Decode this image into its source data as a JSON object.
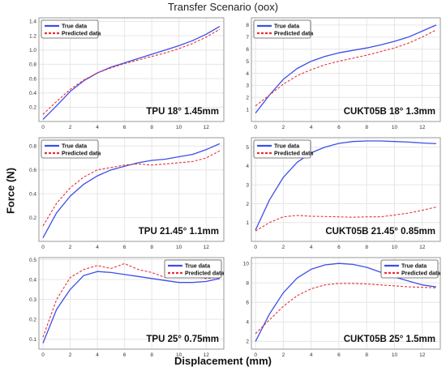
{
  "figure": {
    "title": "Transfer Scenario (oox)",
    "ylabel": "Force (N)",
    "xlabel": "Displacement (mm)"
  },
  "colors": {
    "true": "#3d4ee8",
    "pred": "#e8303a"
  },
  "chart_data": [
    {
      "type": "line",
      "title": "TPU 18° 1.45mm",
      "legend": "top-left",
      "xlim": [
        -0.3,
        13.3
      ],
      "ylim": [
        0,
        1.45
      ],
      "xticks": [
        0,
        2,
        4,
        6,
        8,
        10,
        12
      ],
      "yticks": [
        0.2,
        0.4,
        0.6,
        0.8,
        1.0,
        1.2,
        1.4
      ],
      "ytick_labels": [
        "0.2",
        "0.4",
        "0.6",
        "0.8",
        "1.0",
        "1.2",
        "1.4"
      ],
      "series": [
        {
          "name": "True data",
          "style": "solid",
          "x": [
            0,
            1,
            2,
            3,
            4,
            5,
            6,
            7,
            8,
            9,
            10,
            11,
            12,
            13
          ],
          "y": [
            0.03,
            0.22,
            0.42,
            0.57,
            0.68,
            0.76,
            0.82,
            0.88,
            0.94,
            1.0,
            1.06,
            1.13,
            1.22,
            1.33
          ]
        },
        {
          "name": "Predicted data",
          "style": "dashed",
          "x": [
            0,
            1,
            2,
            3,
            4,
            5,
            6,
            7,
            8,
            9,
            10,
            11,
            12,
            13
          ],
          "y": [
            0.1,
            0.28,
            0.45,
            0.58,
            0.68,
            0.75,
            0.81,
            0.86,
            0.91,
            0.96,
            1.02,
            1.09,
            1.18,
            1.29
          ]
        }
      ]
    },
    {
      "type": "line",
      "title": "CUKT05B 18° 1.3mm",
      "legend": "top-left",
      "xlim": [
        -0.3,
        13.3
      ],
      "ylim": [
        0,
        8.6
      ],
      "xticks": [
        0,
        2,
        4,
        6,
        8,
        10,
        12
      ],
      "yticks": [
        1,
        2,
        3,
        4,
        5,
        6,
        7,
        8
      ],
      "ytick_labels": [
        "1",
        "2",
        "3",
        "4",
        "5",
        "6",
        "7",
        "8"
      ],
      "series": [
        {
          "name": "True data",
          "style": "solid",
          "x": [
            0,
            1,
            2,
            3,
            4,
            5,
            6,
            7,
            8,
            9,
            10,
            11,
            12,
            13
          ],
          "y": [
            0.7,
            2.2,
            3.5,
            4.4,
            5.0,
            5.4,
            5.7,
            5.9,
            6.1,
            6.35,
            6.65,
            7.0,
            7.5,
            8.0
          ]
        },
        {
          "name": "Predicted data",
          "style": "dashed",
          "x": [
            0,
            1,
            2,
            3,
            4,
            5,
            6,
            7,
            8,
            9,
            10,
            11,
            12,
            13
          ],
          "y": [
            1.3,
            2.2,
            3.1,
            3.8,
            4.3,
            4.7,
            5.0,
            5.25,
            5.5,
            5.8,
            6.1,
            6.5,
            7.0,
            7.6
          ]
        }
      ]
    },
    {
      "type": "line",
      "title": "TPU 21.45° 1.1mm",
      "legend": "top-left",
      "xlim": [
        -0.3,
        13.3
      ],
      "ylim": [
        0,
        0.87
      ],
      "xticks": [
        0,
        2,
        4,
        6,
        8,
        10,
        12
      ],
      "yticks": [
        0.2,
        0.4,
        0.6,
        0.8
      ],
      "ytick_labels": [
        "0.2",
        "0.4",
        "0.6",
        "0.8"
      ],
      "series": [
        {
          "name": "True data",
          "style": "solid",
          "x": [
            0,
            1,
            2,
            3,
            4,
            5,
            6,
            7,
            8,
            9,
            10,
            11,
            12,
            13
          ],
          "y": [
            0.03,
            0.24,
            0.38,
            0.48,
            0.55,
            0.6,
            0.63,
            0.66,
            0.68,
            0.69,
            0.71,
            0.73,
            0.77,
            0.82
          ]
        },
        {
          "name": "Predicted data",
          "style": "dashed",
          "x": [
            0,
            1,
            2,
            3,
            4,
            5,
            6,
            7,
            8,
            9,
            10,
            11,
            12,
            13
          ],
          "y": [
            0.13,
            0.32,
            0.45,
            0.54,
            0.6,
            0.62,
            0.64,
            0.65,
            0.64,
            0.65,
            0.66,
            0.67,
            0.7,
            0.76
          ]
        }
      ]
    },
    {
      "type": "line",
      "title": "CUKT05B 21.45° 0.85mm",
      "legend": "top-left",
      "xlim": [
        -0.3,
        13.3
      ],
      "ylim": [
        0,
        5.5
      ],
      "xticks": [
        0,
        2,
        4,
        6,
        8,
        10,
        12
      ],
      "yticks": [
        1,
        2,
        3,
        4,
        5
      ],
      "ytick_labels": [
        "1",
        "2",
        "3",
        "4",
        "5"
      ],
      "series": [
        {
          "name": "True data",
          "style": "solid",
          "x": [
            0,
            1,
            2,
            3,
            4,
            5,
            6,
            7,
            8,
            9,
            10,
            11,
            12,
            13
          ],
          "y": [
            0.6,
            2.2,
            3.4,
            4.2,
            4.7,
            5.0,
            5.2,
            5.3,
            5.33,
            5.33,
            5.3,
            5.27,
            5.22,
            5.18
          ]
        },
        {
          "name": "Predicted data",
          "style": "dashed",
          "x": [
            0,
            1,
            2,
            3,
            4,
            5,
            6,
            7,
            8,
            9,
            10,
            11,
            12,
            13
          ],
          "y": [
            0.55,
            1.0,
            1.3,
            1.38,
            1.33,
            1.32,
            1.3,
            1.28,
            1.3,
            1.3,
            1.4,
            1.5,
            1.65,
            1.82
          ]
        }
      ]
    },
    {
      "type": "line",
      "title": "TPU 25° 0.75mm",
      "legend": "top-right",
      "xlim": [
        -0.3,
        13.3
      ],
      "ylim": [
        0.05,
        0.51
      ],
      "xticks": [
        0,
        2,
        4,
        6,
        8,
        10,
        12
      ],
      "yticks": [
        0.1,
        0.2,
        0.3,
        0.4,
        0.5
      ],
      "ytick_labels": [
        "0.1",
        "0.2",
        "0.3",
        "0.4",
        "0.5"
      ],
      "series": [
        {
          "name": "True data",
          "style": "solid",
          "x": [
            0,
            1,
            2,
            3,
            4,
            5,
            6,
            7,
            8,
            9,
            10,
            11,
            12,
            13
          ],
          "y": [
            0.08,
            0.25,
            0.35,
            0.42,
            0.44,
            0.435,
            0.425,
            0.415,
            0.405,
            0.395,
            0.385,
            0.385,
            0.39,
            0.405
          ]
        },
        {
          "name": "Predicted data",
          "style": "dashed",
          "x": [
            0,
            1,
            2,
            3,
            4,
            5,
            6,
            7,
            8,
            9,
            10,
            11,
            12,
            13
          ],
          "y": [
            0.11,
            0.3,
            0.41,
            0.45,
            0.47,
            0.455,
            0.48,
            0.45,
            0.435,
            0.41,
            0.42,
            0.415,
            0.405,
            0.41
          ]
        }
      ]
    },
    {
      "type": "line",
      "title": "CUKT05B 25° 1.5mm",
      "legend": "top-right",
      "xlim": [
        -0.3,
        13.3
      ],
      "ylim": [
        1.2,
        10.6
      ],
      "xticks": [
        0,
        2,
        4,
        6,
        8,
        10,
        12
      ],
      "yticks": [
        2,
        4,
        6,
        8,
        10
      ],
      "ytick_labels": [
        "2",
        "4",
        "6",
        "8",
        "10"
      ],
      "series": [
        {
          "name": "True data",
          "style": "solid",
          "x": [
            0,
            1,
            2,
            3,
            4,
            5,
            6,
            7,
            8,
            9,
            10,
            11,
            12,
            13
          ],
          "y": [
            2.0,
            4.8,
            7.0,
            8.5,
            9.4,
            9.85,
            10.0,
            9.9,
            9.6,
            9.1,
            8.6,
            8.2,
            7.8,
            7.6
          ]
        },
        {
          "name": "Predicted data",
          "style": "dashed",
          "x": [
            0,
            1,
            2,
            3,
            4,
            5,
            6,
            7,
            8,
            9,
            10,
            11,
            12,
            13
          ],
          "y": [
            2.8,
            4.2,
            5.6,
            6.7,
            7.4,
            7.8,
            7.95,
            7.95,
            7.9,
            7.8,
            7.7,
            7.6,
            7.55,
            7.5
          ]
        }
      ]
    }
  ]
}
